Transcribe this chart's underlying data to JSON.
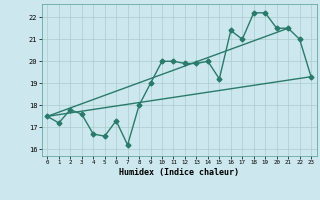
{
  "title": "",
  "xlabel": "Humidex (Indice chaleur)",
  "bg_color": "#cce8ee",
  "grid_color": "#aacccc",
  "line_color": "#2a7a6a",
  "xlim": [
    -0.5,
    23.5
  ],
  "ylim": [
    15.7,
    22.6
  ],
  "yticks": [
    16,
    17,
    18,
    19,
    20,
    21,
    22
  ],
  "xticks": [
    0,
    1,
    2,
    3,
    4,
    5,
    6,
    7,
    8,
    9,
    10,
    11,
    12,
    13,
    14,
    15,
    16,
    17,
    18,
    19,
    20,
    21,
    22,
    23
  ],
  "main_x": [
    0,
    1,
    2,
    3,
    4,
    5,
    6,
    7,
    8,
    9,
    10,
    11,
    12,
    13,
    14,
    15,
    16,
    17,
    18,
    19,
    20,
    21,
    22,
    23
  ],
  "main_y": [
    17.5,
    17.2,
    17.8,
    17.6,
    16.7,
    16.6,
    17.3,
    16.2,
    18.0,
    19.0,
    20.0,
    20.0,
    19.9,
    19.9,
    20.0,
    19.2,
    21.4,
    21.0,
    22.2,
    22.2,
    21.5,
    21.5,
    21.0,
    19.3
  ],
  "line1_x": [
    0,
    23
  ],
  "line1_y": [
    17.5,
    19.3
  ],
  "line2_x": [
    0,
    21
  ],
  "line2_y": [
    17.5,
    21.5
  ],
  "marker_size": 2.5,
  "line_width": 1.0
}
